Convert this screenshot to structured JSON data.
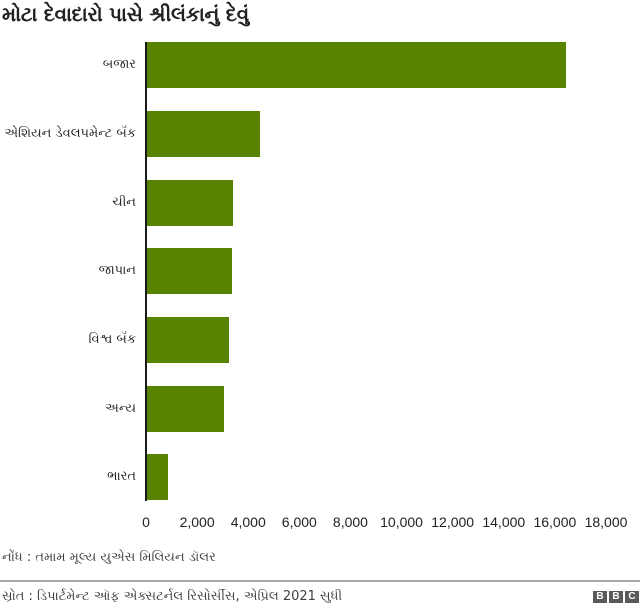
{
  "header": {
    "title": "મોટા દેવાદારો પાસે શ્રીલંકાનું દેવું"
  },
  "chart_data": {
    "type": "bar",
    "orientation": "horizontal",
    "title": "મોટા દેવાદારો પાસે શ્રીલંકાનું દેવું",
    "xlabel": "",
    "ylabel": "",
    "categories": [
      "બજાર",
      "એશિયન ડેવલપમેન્ટ બૅંક",
      "ચીન",
      "જાપાન",
      "વિશ્વ બૅંક",
      "અન્ય",
      "ભારત"
    ],
    "values": [
      16450,
      4460,
      3390,
      3380,
      3240,
      3050,
      860
    ],
    "xlim": [
      0,
      18000
    ],
    "xticks": [
      0,
      2000,
      4000,
      6000,
      8000,
      10000,
      12000,
      14000,
      16000,
      18000
    ],
    "xtick_labels": [
      "0",
      "2,000",
      "4,000",
      "6,000",
      "8,000",
      "10,000",
      "12,000",
      "14,000",
      "16,000",
      "18,000"
    ],
    "grid": false,
    "legend": null,
    "bar_color": "#588300",
    "units": "મિલિયન ડૉલર"
  },
  "footer": {
    "note": "નોંધ : તમામ મૂલ્ય યુએસ મિલિયન ડૉલર",
    "source": "સ્રોત : ડિપાર્ટમેન્ટ ઑફ એક્સટર્નલ રિસોર્સીસ, એપ્રિલ 2021 સુધી",
    "logo_letters": [
      "B",
      "B",
      "C"
    ]
  },
  "colors": {
    "bar": "#588300",
    "axis": "#1a1a1a",
    "text": "#222222",
    "footer_text": "#404040",
    "divider": "#a8a8a8",
    "logo_bg": "#5a5a5a"
  }
}
